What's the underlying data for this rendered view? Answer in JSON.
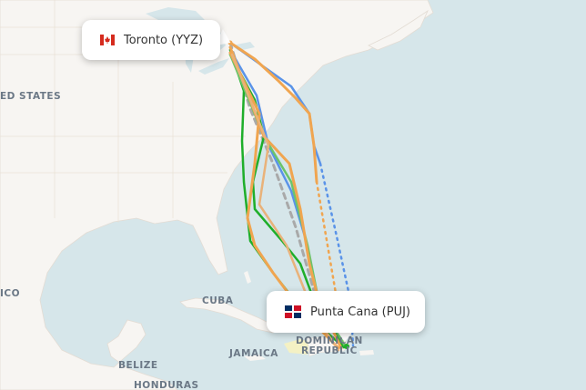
{
  "map": {
    "labels": {
      "united_states": "ED STATES",
      "mexico": "ICO",
      "cuba": "CUBA",
      "jamaica": "JAMAICA",
      "belize": "BELIZE",
      "honduras": "HONDURAS",
      "dominican_republic_1": "DOMINICAN",
      "dominican_republic_2": "REPUBLIC"
    },
    "colors": {
      "water": "#d6e6ea",
      "land": "#f7f5f2",
      "route_orange": "#f0a550",
      "route_green": "#1fae2a",
      "route_blue": "#5a93e8",
      "route_gray": "#a9a9a9"
    }
  },
  "origin": {
    "label": "Toronto (YYZ)",
    "flag": "canada-flag"
  },
  "destination": {
    "label": "Punta Cana (PUJ)",
    "flag": "dominican-republic-flag"
  }
}
